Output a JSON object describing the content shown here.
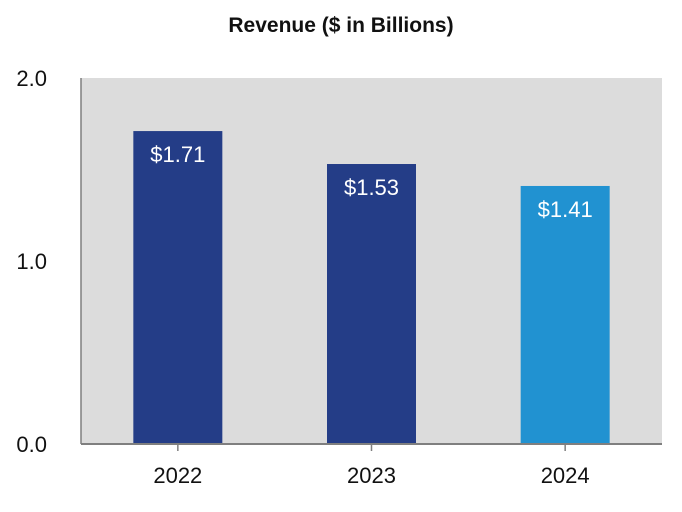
{
  "chart_data": {
    "type": "bar",
    "title": "Revenue ($ in Billions)",
    "xlabel": "",
    "ylabel": "",
    "categories": [
      "2022",
      "2023",
      "2024"
    ],
    "values": [
      1.71,
      1.53,
      1.41
    ],
    "data_labels": [
      "$1.71",
      "$1.53",
      "$1.41"
    ],
    "bar_colors": [
      "#243d87",
      "#243d87",
      "#2192d1"
    ],
    "ylim": [
      0,
      2.0
    ],
    "yticks": [
      0.0,
      1.0,
      2.0
    ],
    "ytick_labels": [
      "0.0",
      "1.0",
      "2.0"
    ],
    "grid": false,
    "legend": "none",
    "plot_background": "#dcdcdc",
    "axis_color": "#7f7f7f"
  }
}
